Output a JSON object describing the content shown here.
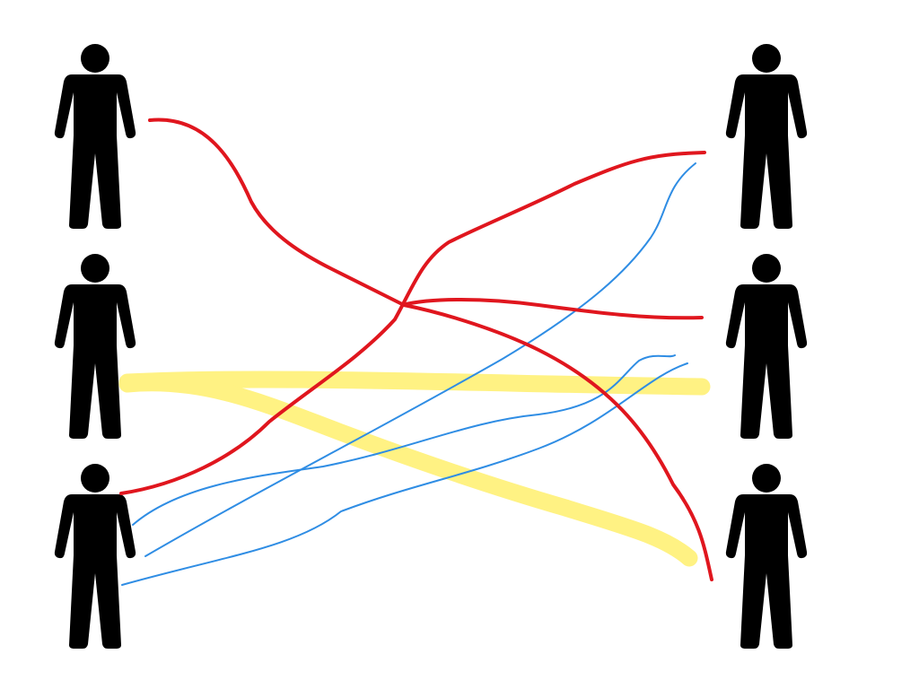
{
  "diagram": {
    "people_icon": "person-icon",
    "left_column": [
      {
        "id": "L1",
        "icon": "person-icon"
      },
      {
        "id": "L2",
        "icon": "person-icon"
      },
      {
        "id": "L3",
        "icon": "person-icon"
      }
    ],
    "right_column": [
      {
        "id": "R1",
        "icon": "person-icon"
      },
      {
        "id": "R2",
        "icon": "person-icon"
      },
      {
        "id": "R3",
        "icon": "person-icon"
      }
    ],
    "connections": {
      "red": {
        "color": "#e0161e",
        "links": [
          [
            "L1",
            "R3"
          ],
          [
            "L3",
            "R1"
          ],
          [
            "L1",
            "R2"
          ]
        ]
      },
      "yellow": {
        "color": "#fff176",
        "links": [
          [
            "L2",
            "R2"
          ],
          [
            "L2",
            "R3"
          ]
        ]
      },
      "blue": {
        "color": "#2f8de4",
        "links": [
          [
            "L3",
            "R1"
          ],
          [
            "L3",
            "R2"
          ],
          [
            "L3",
            "R2"
          ]
        ]
      }
    },
    "figure_color": "#000000",
    "background_color": "#ffffff"
  }
}
